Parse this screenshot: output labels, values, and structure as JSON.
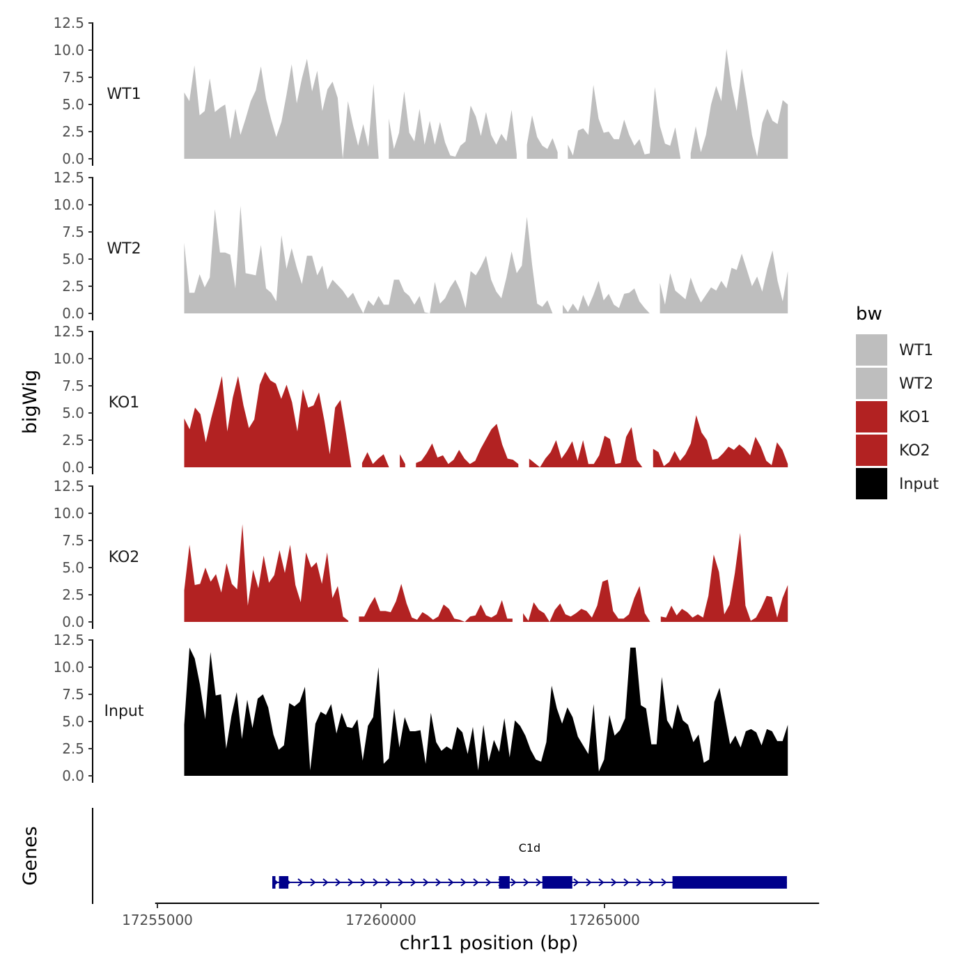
{
  "chart_data": {
    "type": "area",
    "region": {
      "chrom": "chr11",
      "start": 17255600,
      "end": 17269100
    },
    "xlabel": "chr11 position (bp)",
    "ylabel": "bigWig",
    "x_ticks": [
      17255000,
      17260000,
      17265000
    ],
    "x_tick_labels": [
      "17255000",
      "17260000",
      "17265000"
    ],
    "xlim": [
      17254950,
      17269800
    ],
    "ylim": [
      0,
      12.5
    ],
    "y_ticks": [
      0,
      2.5,
      5,
      7.5,
      10,
      12.5
    ],
    "y_tick_labels": [
      "0.0",
      "2.5",
      "5.0",
      "7.5",
      "10.0",
      "12.5"
    ],
    "legend": {
      "title": "bw",
      "placement": "right",
      "entries": [
        {
          "name": "WT1",
          "color": "#bebebe"
        },
        {
          "name": "WT2",
          "color": "#bebebe"
        },
        {
          "name": "KO1",
          "color": "#b22222"
        },
        {
          "name": "KO2",
          "color": "#b22222"
        },
        {
          "name": "Input",
          "color": "#000000"
        }
      ]
    },
    "series": [
      {
        "name": "WT1",
        "color": "#bebebe",
        "values": [
          6.1,
          5.3,
          8.6,
          4.0,
          4.4,
          7.4,
          4.3,
          4.7,
          5.0,
          1.8,
          4.6,
          2.2,
          3.7,
          5.3,
          6.3,
          8.5,
          5.5,
          3.6,
          2.0,
          3.4,
          5.9,
          8.7,
          5.1,
          7.4,
          9.2,
          6.2,
          8.1,
          4.4,
          6.4,
          7.1,
          5.6,
          0.0,
          5.3,
          3.1,
          1.2,
          3.2,
          1.1,
          6.9,
          0.1,
          null,
          3.7,
          0.9,
          2.4,
          6.2,
          2.4,
          1.6,
          4.6,
          1.3,
          3.5,
          1.3,
          3.4,
          1.5,
          0.3,
          0.2,
          1.2,
          1.6,
          4.9,
          3.9,
          2.1,
          4.3,
          2.2,
          1.3,
          2.3,
          1.6,
          4.5,
          0.4,
          null,
          1.3,
          4.0,
          2.0,
          1.2,
          0.9,
          1.9,
          0.6,
          null,
          1.3,
          0.3,
          2.6,
          2.8,
          2.2,
          6.8,
          3.7,
          2.4,
          2.5,
          1.8,
          1.8,
          3.6,
          2.2,
          1.2,
          1.8,
          0.4,
          0.5,
          6.6,
          3.0,
          1.4,
          1.2,
          2.9,
          0.1,
          null,
          0.5,
          3.0,
          0.6,
          2.2,
          5.0,
          6.7,
          5.3,
          10.1,
          6.7,
          4.4,
          8.3,
          5.4,
          2.2,
          0.2,
          3.3,
          4.6,
          3.5,
          3.2,
          5.4,
          5.0
        ]
      },
      {
        "name": "WT2",
        "color": "#bebebe",
        "values": [
          6.5,
          1.9,
          1.9,
          3.6,
          2.4,
          3.3,
          9.6,
          5.6,
          5.6,
          5.4,
          2.3,
          9.9,
          3.7,
          3.6,
          3.5,
          6.3,
          2.3,
          1.9,
          1.1,
          7.2,
          4.1,
          6.0,
          4.2,
          2.7,
          5.3,
          5.3,
          3.5,
          4.4,
          2.2,
          3.1,
          2.6,
          2.1,
          1.4,
          1.9,
          0.9,
          0.0,
          1.2,
          0.7,
          1.6,
          0.8,
          0.8,
          3.1,
          3.1,
          2.0,
          1.6,
          0.8,
          1.6,
          0.1,
          0.0,
          2.9,
          0.9,
          1.4,
          2.4,
          3.1,
          2.1,
          0.5,
          3.9,
          3.5,
          4.3,
          5.3,
          3.1,
          2.0,
          1.4,
          3.3,
          5.7,
          3.7,
          4.4,
          8.9,
          4.5,
          0.9,
          0.6,
          1.2,
          0.0,
          null,
          0.8,
          0.1,
          0.9,
          0.2,
          1.7,
          0.6,
          1.7,
          3.0,
          1.2,
          1.8,
          0.8,
          0.5,
          1.8,
          1.9,
          2.3,
          1.1,
          0.5,
          0.0,
          null,
          2.8,
          0.8,
          3.7,
          2.1,
          1.7,
          1.3,
          3.3,
          2.0,
          1.0,
          1.7,
          2.4,
          2.1,
          3.0,
          2.3,
          4.2,
          4.0,
          5.5,
          4.0,
          2.5,
          3.4,
          2.0,
          4.1,
          5.8,
          3.0,
          1.1,
          3.9
        ]
      },
      {
        "name": "KO1",
        "color": "#b22222",
        "values": [
          4.5,
          3.5,
          5.5,
          4.9,
          2.3,
          4.5,
          6.4,
          8.4,
          3.3,
          6.4,
          8.4,
          5.7,
          3.6,
          4.4,
          7.6,
          8.8,
          8.0,
          7.7,
          6.3,
          7.6,
          6.0,
          3.3,
          7.2,
          5.5,
          5.7,
          6.9,
          4.3,
          1.2,
          5.5,
          6.2,
          3.2,
          0.0,
          null,
          0.4,
          1.4,
          0.3,
          0.8,
          1.2,
          0.0,
          null,
          1.2,
          0.3,
          null,
          0.4,
          0.6,
          1.3,
          2.2,
          0.9,
          1.1,
          0.3,
          0.7,
          1.6,
          0.8,
          0.3,
          0.6,
          1.7,
          2.6,
          3.5,
          4.0,
          2.1,
          0.8,
          0.7,
          0.3,
          null,
          0.8,
          0.4,
          0.0,
          0.8,
          1.4,
          2.5,
          0.8,
          1.5,
          2.4,
          0.6,
          2.5,
          0.3,
          0.3,
          1.1,
          2.9,
          2.6,
          0.3,
          0.4,
          2.8,
          3.7,
          0.7,
          0.0,
          null,
          1.7,
          1.4,
          0.1,
          0.5,
          1.5,
          0.6,
          1.2,
          2.2,
          4.8,
          3.2,
          2.5,
          0.7,
          0.8,
          1.3,
          1.9,
          1.6,
          2.1,
          1.7,
          1.1,
          2.8,
          1.9,
          0.6,
          0.2,
          2.3,
          1.6,
          0.3
        ]
      },
      {
        "name": "KO2",
        "color": "#b22222",
        "values": [
          2.9,
          7.1,
          3.4,
          3.5,
          5.0,
          3.7,
          4.4,
          2.7,
          5.4,
          3.5,
          3.0,
          9.0,
          1.5,
          4.8,
          3.1,
          6.1,
          3.6,
          4.3,
          6.6,
          4.5,
          7.1,
          3.4,
          1.8,
          6.4,
          5.0,
          5.5,
          3.5,
          6.4,
          2.2,
          3.3,
          0.5,
          0.1,
          null,
          0.5,
          0.5,
          1.5,
          2.3,
          1.0,
          1.0,
          0.9,
          1.9,
          3.5,
          1.7,
          0.4,
          0.2,
          0.9,
          0.6,
          0.2,
          0.5,
          1.6,
          1.2,
          0.3,
          0.2,
          0.0,
          0.5,
          0.6,
          1.6,
          0.6,
          0.4,
          0.7,
          2.0,
          0.3,
          0.3,
          null,
          0.8,
          0.1,
          1.8,
          1.1,
          0.8,
          0.0,
          1.1,
          1.7,
          0.7,
          0.5,
          0.8,
          1.2,
          1.0,
          0.4,
          1.5,
          3.7,
          3.9,
          1.0,
          0.3,
          0.3,
          0.7,
          2.2,
          3.3,
          0.8,
          0.0,
          null,
          0.5,
          0.4,
          1.5,
          0.6,
          1.2,
          0.9,
          0.4,
          0.7,
          0.4,
          2.4,
          6.2,
          4.6,
          0.7,
          1.6,
          4.5,
          8.2,
          1.5,
          0.1,
          0.4,
          1.3,
          2.4,
          2.3,
          0.4,
          2.2,
          3.4
        ]
      },
      {
        "name": "Input",
        "color": "#000000",
        "values": [
          4.7,
          11.8,
          10.8,
          8.4,
          5.2,
          11.4,
          7.4,
          7.5,
          2.5,
          5.5,
          7.7,
          3.4,
          7.0,
          4.4,
          7.1,
          7.5,
          6.3,
          3.8,
          2.4,
          2.8,
          6.7,
          6.4,
          6.8,
          8.2,
          0.5,
          4.8,
          5.9,
          5.6,
          6.6,
          3.9,
          5.8,
          4.5,
          4.4,
          5.2,
          1.4,
          4.6,
          5.4,
          10.0,
          1.1,
          1.6,
          6.2,
          2.6,
          5.4,
          4.1,
          4.1,
          4.2,
          1.1,
          5.8,
          3.1,
          2.3,
          2.7,
          2.4,
          4.5,
          4.0,
          2.0,
          4.5,
          0.5,
          4.7,
          1.3,
          3.3,
          2.2,
          5.3,
          1.7,
          5.1,
          4.6,
          3.7,
          2.4,
          1.5,
          1.3,
          3.1,
          8.3,
          6.2,
          4.8,
          6.3,
          5.4,
          3.6,
          2.8,
          2.0,
          6.6,
          0.4,
          1.5,
          5.6,
          3.7,
          4.2,
          5.3,
          11.8,
          11.8,
          6.5,
          6.2,
          2.9,
          2.9,
          9.1,
          5.1,
          4.3,
          6.6,
          5.1,
          4.7,
          3.1,
          3.8,
          1.2,
          1.5,
          6.8,
          8.1,
          5.5,
          2.9,
          3.7,
          2.6,
          4.1,
          4.3,
          4.0,
          2.8,
          4.3,
          4.1,
          3.2,
          3.2,
          4.7
        ]
      }
    ],
    "genes": {
      "title": "Genes",
      "items": [
        {
          "name": "C1d",
          "strand": "+",
          "start": 17257570,
          "end": 17269080,
          "exons": [
            [
              17257570,
              17257640
            ],
            [
              17257720,
              17257930
            ],
            [
              17262640,
              17262880
            ],
            [
              17263610,
              17264280
            ],
            [
              17266520,
              17269080
            ]
          ]
        }
      ]
    }
  }
}
